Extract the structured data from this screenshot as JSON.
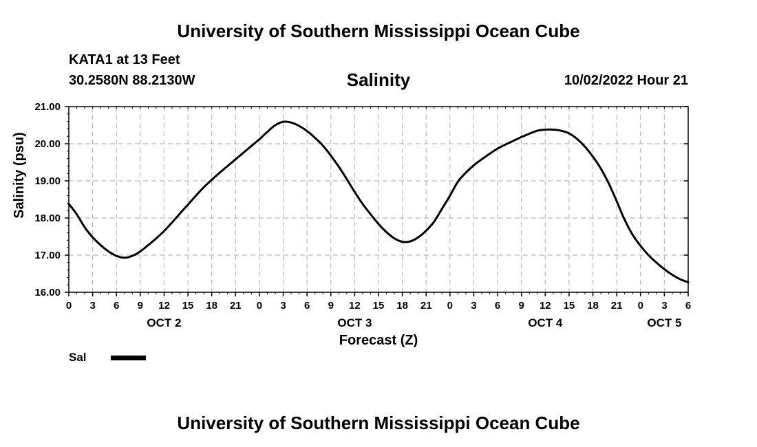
{
  "header": {
    "title": "University of Southern Mississippi Ocean Cube",
    "station": "KATA1 at 13 Feet",
    "coords": "30.2580N  88.2130W",
    "datetime": "10/02/2022 Hour 21"
  },
  "footer": {
    "title": "University of Southern Mississippi Ocean Cube"
  },
  "legend": {
    "label": "Sal"
  },
  "colors": {
    "line": "#000000",
    "grid": "#bbbbbb"
  },
  "chart_data": {
    "type": "line",
    "title": "Salinity",
    "xlabel": "Forecast (Z)",
    "ylabel": "Salinity (psu)",
    "ylim": [
      16.0,
      21.0
    ],
    "xlim": [
      0,
      78
    ],
    "grid": true,
    "x_tick_labels": [
      "0",
      "3",
      "6",
      "9",
      "12",
      "15",
      "18",
      "21",
      "0",
      "3",
      "6",
      "9",
      "12",
      "15",
      "18",
      "21",
      "0",
      "3",
      "6",
      "9",
      "12",
      "15",
      "18",
      "21",
      "0",
      "3",
      "6"
    ],
    "y_tick_labels": [
      "16.00",
      "17.00",
      "18.00",
      "19.00",
      "20.00",
      "21.00"
    ],
    "date_labels": [
      {
        "label": "OCT 2",
        "hour": 12
      },
      {
        "label": "OCT 3",
        "hour": 36
      },
      {
        "label": "OCT 4",
        "hour": 60
      },
      {
        "label": "OCT 5",
        "hour": 75
      }
    ],
    "series": [
      {
        "name": "Sal",
        "x": [
          0,
          1,
          2,
          3,
          4,
          5,
          6,
          7,
          8,
          9,
          10,
          11,
          12,
          13,
          14,
          15,
          16,
          17,
          18,
          19,
          20,
          21,
          22,
          23,
          24,
          25,
          26,
          27,
          28,
          29,
          30,
          31,
          32,
          33,
          34,
          35,
          36,
          37,
          38,
          39,
          40,
          41,
          42,
          43,
          44,
          45,
          46,
          47,
          48,
          49,
          50,
          51,
          52,
          53,
          54,
          55,
          56,
          57,
          58,
          59,
          60,
          61,
          62,
          63,
          64,
          65,
          66,
          67,
          68,
          69,
          70,
          71,
          72,
          73,
          74,
          75,
          76,
          77,
          78
        ],
        "values": [
          18.38,
          18.1,
          17.75,
          17.48,
          17.27,
          17.1,
          16.98,
          16.93,
          16.98,
          17.1,
          17.27,
          17.45,
          17.65,
          17.88,
          18.12,
          18.36,
          18.6,
          18.83,
          19.03,
          19.22,
          19.4,
          19.58,
          19.76,
          19.94,
          20.12,
          20.32,
          20.5,
          20.59,
          20.57,
          20.48,
          20.34,
          20.16,
          19.95,
          19.68,
          19.38,
          19.05,
          18.7,
          18.38,
          18.1,
          17.84,
          17.62,
          17.45,
          17.36,
          17.37,
          17.48,
          17.66,
          17.9,
          18.25,
          18.6,
          18.98,
          19.22,
          19.42,
          19.58,
          19.73,
          19.87,
          19.98,
          20.08,
          20.18,
          20.27,
          20.35,
          20.38,
          20.38,
          20.35,
          20.28,
          20.13,
          19.92,
          19.65,
          19.33,
          18.93,
          18.45,
          17.95,
          17.55,
          17.25,
          17.0,
          16.8,
          16.62,
          16.47,
          16.35,
          16.27
        ]
      }
    ]
  }
}
